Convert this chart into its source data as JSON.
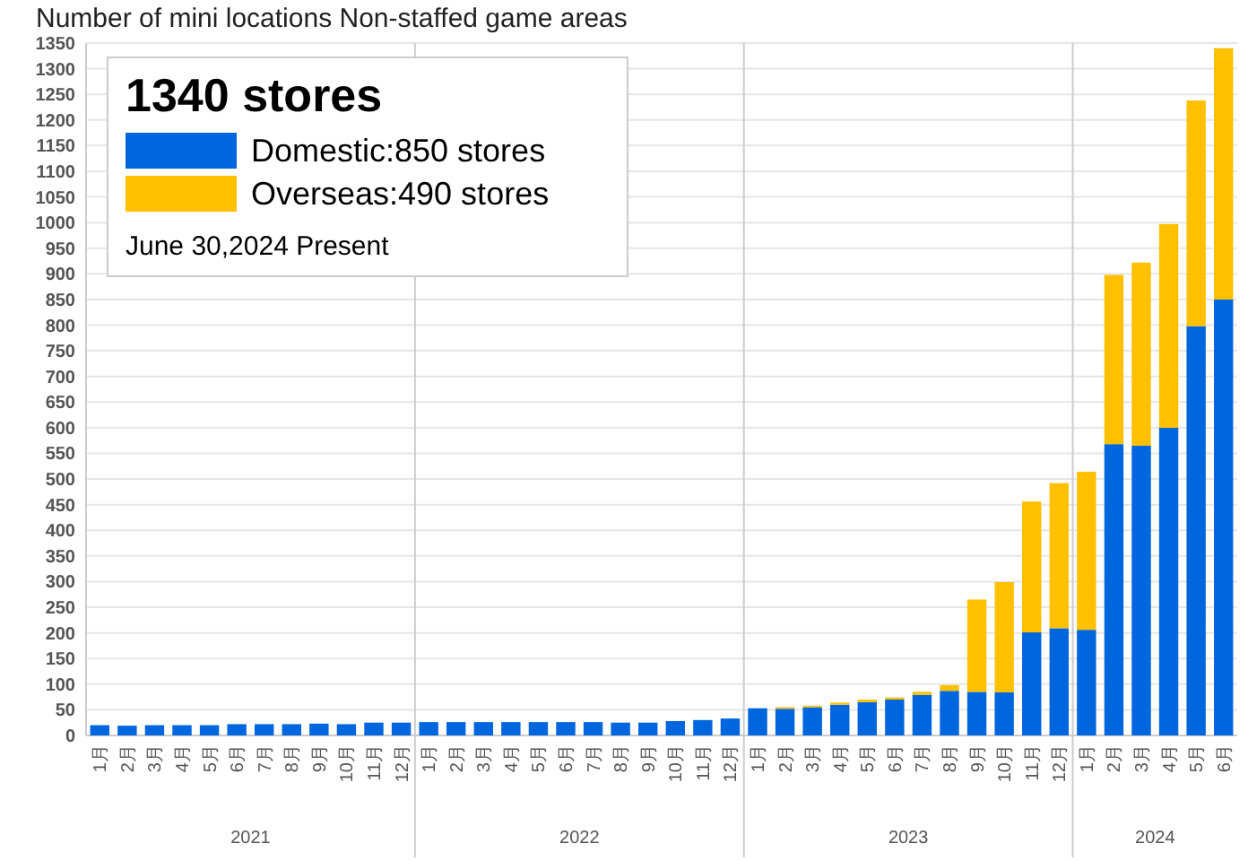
{
  "chart_data": {
    "type": "bar",
    "stacked": true,
    "title": "Number of mini locations  Non-staffed game areas",
    "legend_title": "1340 stores",
    "categories": [
      "1月",
      "2月",
      "3月",
      "4月",
      "5月",
      "6月",
      "7月",
      "8月",
      "9月",
      "10月",
      "11月",
      "12月",
      "1月",
      "2月",
      "3月",
      "4月",
      "5月",
      "6月",
      "7月",
      "8月",
      "9月",
      "10月",
      "11月",
      "12月",
      "1月",
      "2月",
      "3月",
      "4月",
      "5月",
      "6月",
      "7月",
      "8月",
      "9月",
      "10月",
      "11月",
      "12月",
      "1月",
      "2月",
      "3月",
      "4月",
      "5月",
      "6月"
    ],
    "series": [
      {
        "name": "Domestic:850 stores",
        "color": "#0066dd",
        "values": [
          20,
          19,
          20,
          20,
          20,
          22,
          22,
          22,
          23,
          22,
          25,
          25,
          26,
          26,
          26,
          26,
          26,
          26,
          26,
          25,
          25,
          28,
          30,
          33,
          53,
          52,
          55,
          60,
          65,
          70,
          79,
          87,
          85,
          84,
          201,
          209,
          206,
          568,
          565,
          600,
          798,
          850
        ]
      },
      {
        "name": "Overseas:490 stores",
        "color": "#ffc000",
        "values": [
          0,
          0,
          0,
          0,
          0,
          0,
          0,
          0,
          0,
          0,
          0,
          0,
          0,
          0,
          0,
          0,
          0,
          0,
          0,
          0,
          0,
          0,
          0,
          0,
          0,
          3,
          3,
          4,
          5,
          4,
          6,
          11,
          180,
          215,
          255,
          283,
          308,
          330,
          357,
          397,
          440,
          490
        ]
      }
    ],
    "annotations": [
      "June 30,2024 Present",
      "2021",
      "2022",
      "2023",
      "2024"
    ],
    "ylim": [
      0,
      1350
    ],
    "yticks": [
      0,
      50,
      100,
      150,
      200,
      250,
      300,
      350,
      400,
      450,
      500,
      550,
      600,
      650,
      700,
      750,
      800,
      850,
      900,
      950,
      1000,
      1050,
      1100,
      1150,
      1200,
      1250,
      1300,
      1350
    ],
    "grid": "y",
    "legend": "top left"
  }
}
